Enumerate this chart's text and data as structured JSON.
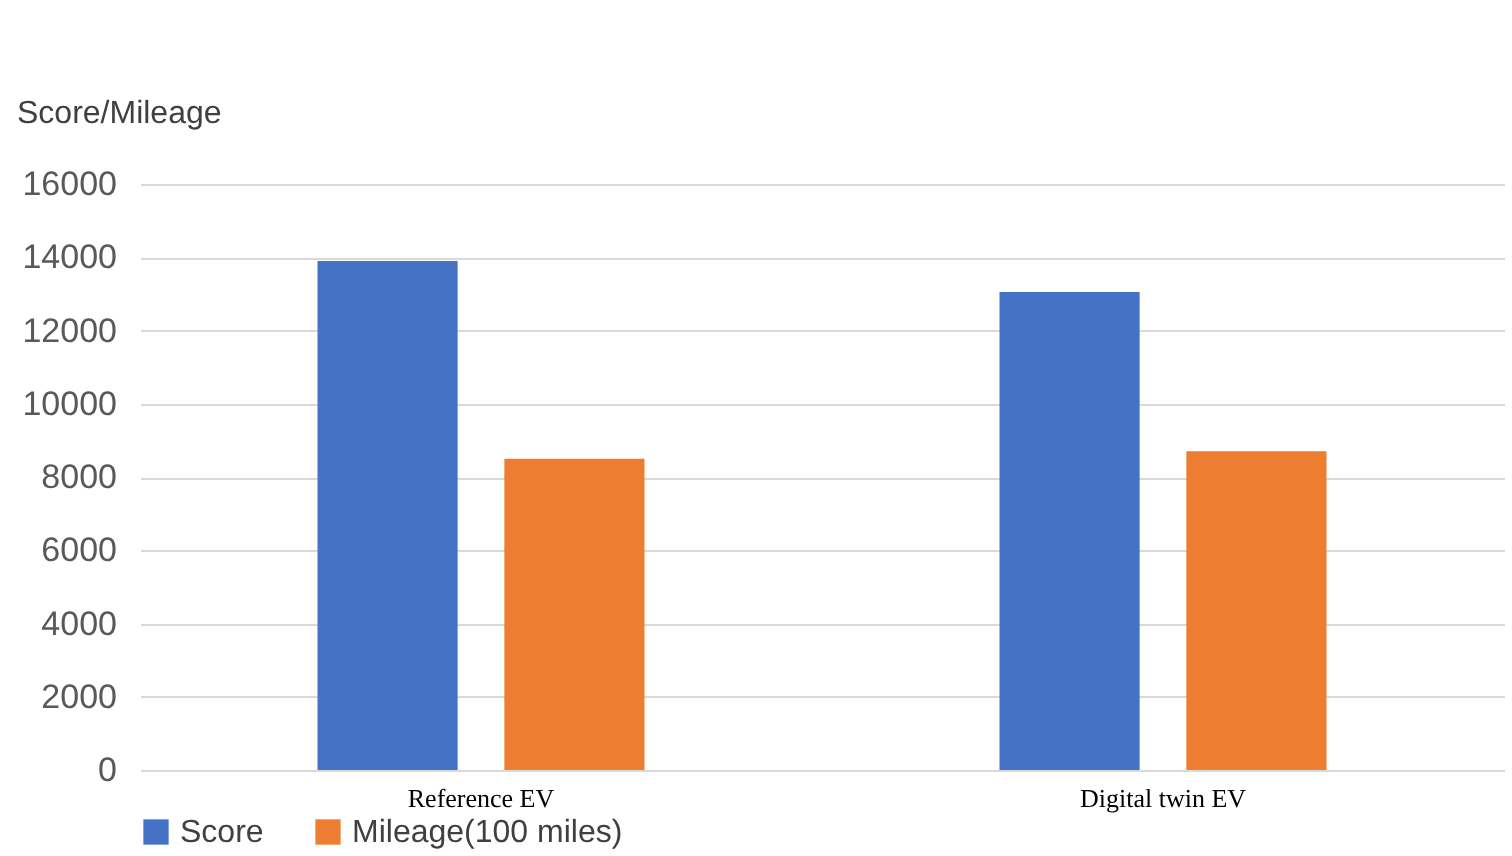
{
  "chart_data": {
    "type": "bar",
    "ylabel": "Score/Mileage",
    "categories": [
      "Reference EV",
      "Digital twin EV"
    ],
    "series": [
      {
        "name": "Score",
        "color": "#4472c4",
        "values": [
          13900,
          13050
        ]
      },
      {
        "name": "Mileage(100 miles)",
        "color": "#ed7d31",
        "values": [
          8500,
          8700
        ]
      }
    ],
    "ylim": [
      0,
      16000
    ],
    "yticks": [
      0,
      2000,
      4000,
      6000,
      8000,
      10000,
      12000,
      14000,
      16000
    ],
    "grid": "y",
    "legend": "bottom"
  }
}
